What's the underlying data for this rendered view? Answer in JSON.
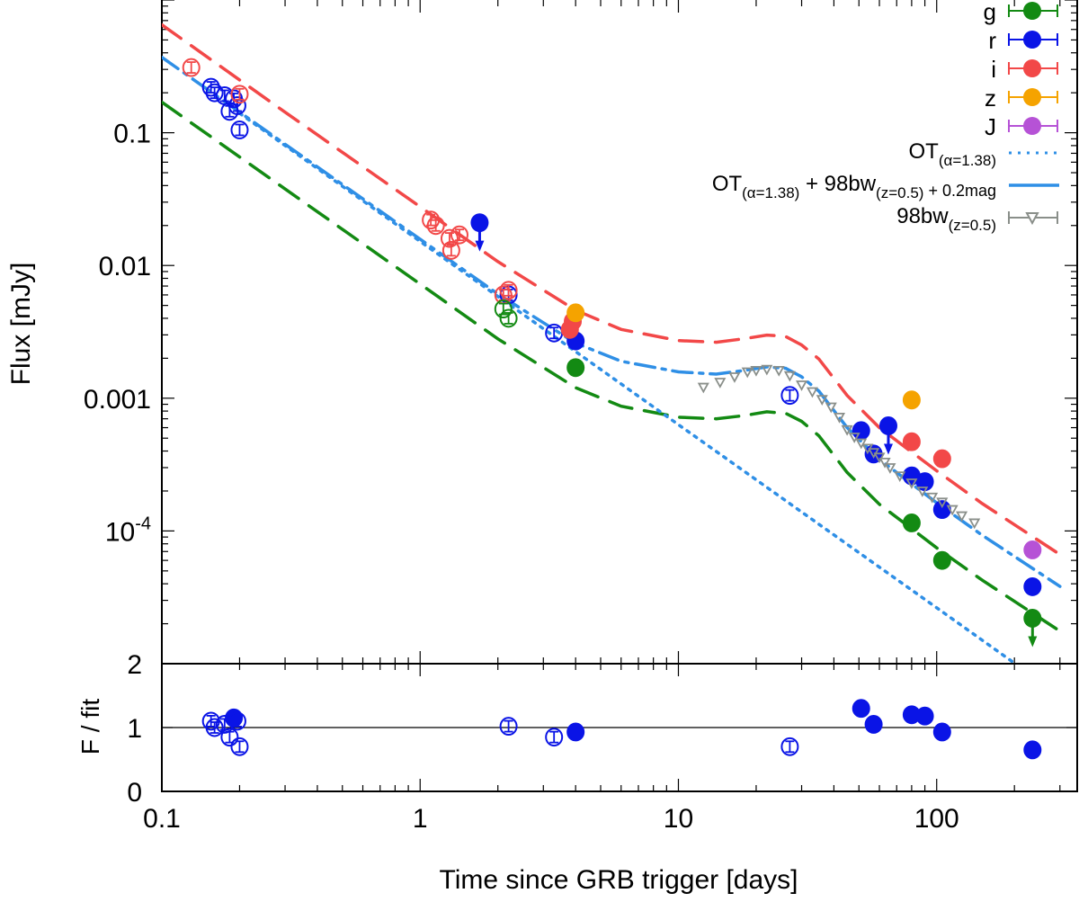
{
  "chart_data": {
    "type": "scatter",
    "xscale": "log",
    "yscale": "log",
    "xlabel": "Time since GRB trigger [days]",
    "ylabel": "Flux [mJy]",
    "ratio_ylabel": "F / fit",
    "xlim": [
      0.1,
      350
    ],
    "ylim": [
      1e-05,
      1
    ],
    "ratio_ylim": [
      0,
      2
    ],
    "x_ticks": [
      {
        "v": 0.1,
        "label": "0.1"
      },
      {
        "v": 1,
        "label": "1"
      },
      {
        "v": 10,
        "label": "10"
      },
      {
        "v": 100,
        "label": "100"
      }
    ],
    "y_ticks": [
      {
        "v": 0.1,
        "label": "0.1"
      },
      {
        "v": 0.01,
        "label": "0.01"
      },
      {
        "v": 0.001,
        "label": "0.001"
      },
      {
        "v": 0.0001,
        "base": "10",
        "exp": "-4"
      }
    ],
    "ratio_ticks": [
      {
        "v": 0,
        "label": "0"
      },
      {
        "v": 1,
        "label": "1"
      },
      {
        "v": 2,
        "label": "2"
      }
    ],
    "colors": {
      "g": "#138a13",
      "r": "#0a14e6",
      "i": "#f24848",
      "z": "#f5a300",
      "J": "#b652d6",
      "ot": "#2f8fe6",
      "bw": "#8a8f8a"
    },
    "legend": {
      "bands": [
        {
          "label": "g",
          "color": "#138a13"
        },
        {
          "label": "r",
          "color": "#0a14e6"
        },
        {
          "label": "i",
          "color": "#f24848"
        },
        {
          "label": "z",
          "color": "#f5a300"
        },
        {
          "label": "J",
          "color": "#b652d6"
        }
      ],
      "models": [
        {
          "main": "OT",
          "sub": "(α=1.38)",
          "style": "dotted",
          "color": "#2f8fe6"
        },
        {
          "main": "OT",
          "sub": "(α=1.38)",
          "mid": " + 98bw",
          "sub2": "(z=0.5)",
          "tail": " + 0.2mag",
          "style": "dashed",
          "color": "#2f8fe6"
        },
        {
          "main": "98bw",
          "sub": "(z=0.5)",
          "style": "triangles",
          "color": "#8a8f8a"
        }
      ],
      "position": "top-right"
    },
    "series": [
      {
        "name": "r",
        "color": "#0a14e6",
        "points": [
          {
            "x": 0.155,
            "y": 0.22,
            "open": true
          },
          {
            "x": 0.16,
            "y": 0.2,
            "open": true
          },
          {
            "x": 0.175,
            "y": 0.19,
            "open": true
          },
          {
            "x": 0.183,
            "y": 0.145,
            "open": true
          },
          {
            "x": 0.19,
            "y": 0.18,
            "open": true
          },
          {
            "x": 0.196,
            "y": 0.16,
            "open": true
          },
          {
            "x": 0.2,
            "y": 0.105,
            "open": true
          },
          {
            "x": 1.7,
            "y": 0.021,
            "open": false,
            "limit": true
          },
          {
            "x": 2.2,
            "y": 0.006,
            "open": true
          },
          {
            "x": 3.3,
            "y": 0.0031,
            "open": true
          },
          {
            "x": 4.0,
            "y": 0.0027,
            "open": false
          },
          {
            "x": 27,
            "y": 0.00105,
            "open": true
          },
          {
            "x": 51,
            "y": 0.00057,
            "open": false
          },
          {
            "x": 57,
            "y": 0.00038,
            "open": false
          },
          {
            "x": 65,
            "y": 0.00062,
            "open": false,
            "limit": true
          },
          {
            "x": 80,
            "y": 0.00026,
            "open": false
          },
          {
            "x": 90,
            "y": 0.000235,
            "open": false
          },
          {
            "x": 105,
            "y": 0.000145,
            "open": false
          },
          {
            "x": 235,
            "y": 3.8e-05,
            "open": false
          }
        ]
      },
      {
        "name": "i",
        "color": "#f24848",
        "points": [
          {
            "x": 0.13,
            "y": 0.31,
            "open": true
          },
          {
            "x": 0.2,
            "y": 0.195,
            "open": true
          },
          {
            "x": 1.1,
            "y": 0.022,
            "open": true
          },
          {
            "x": 1.15,
            "y": 0.02,
            "open": true
          },
          {
            "x": 1.3,
            "y": 0.016,
            "open": true
          },
          {
            "x": 1.32,
            "y": 0.013,
            "open": true
          },
          {
            "x": 1.42,
            "y": 0.017,
            "open": true
          },
          {
            "x": 2.1,
            "y": 0.006,
            "open": true
          },
          {
            "x": 2.2,
            "y": 0.0065,
            "open": true
          },
          {
            "x": 3.8,
            "y": 0.0033,
            "open": false
          },
          {
            "x": 3.9,
            "y": 0.0038,
            "open": false
          },
          {
            "x": 80,
            "y": 0.00047,
            "open": false
          },
          {
            "x": 105,
            "y": 0.00035,
            "open": false
          }
        ]
      },
      {
        "name": "g",
        "color": "#138a13",
        "points": [
          {
            "x": 2.1,
            "y": 0.0047,
            "open": true
          },
          {
            "x": 2.2,
            "y": 0.004,
            "open": true
          },
          {
            "x": 4.0,
            "y": 0.0017,
            "open": false
          },
          {
            "x": 80,
            "y": 0.000115,
            "open": false
          },
          {
            "x": 105,
            "y": 6e-05,
            "open": false
          },
          {
            "x": 235,
            "y": 2.2e-05,
            "open": false,
            "limit": true
          }
        ]
      },
      {
        "name": "z",
        "color": "#f5a300",
        "points": [
          {
            "x": 4.0,
            "y": 0.0044,
            "open": false
          },
          {
            "x": 80,
            "y": 0.00097,
            "open": false
          }
        ]
      },
      {
        "name": "J",
        "color": "#b652d6",
        "points": [
          {
            "x": 235,
            "y": 7.2e-05,
            "open": false
          }
        ]
      },
      {
        "name": "98bw",
        "color": "#8a8f8a",
        "points": [
          {
            "x": 12.5,
            "y": 0.00121
          },
          {
            "x": 14.5,
            "y": 0.00132
          },
          {
            "x": 16.5,
            "y": 0.00145
          },
          {
            "x": 18.5,
            "y": 0.00158
          },
          {
            "x": 20,
            "y": 0.00162
          },
          {
            "x": 22,
            "y": 0.00165
          },
          {
            "x": 24.5,
            "y": 0.00162
          },
          {
            "x": 27,
            "y": 0.00148
          },
          {
            "x": 30,
            "y": 0.00126
          },
          {
            "x": 33,
            "y": 0.00112
          },
          {
            "x": 36,
            "y": 0.00098
          },
          {
            "x": 39,
            "y": 0.00086
          },
          {
            "x": 42,
            "y": 0.00072
          },
          {
            "x": 45,
            "y": 0.00058
          },
          {
            "x": 48,
            "y": 0.00051
          },
          {
            "x": 51,
            "y": 0.00046
          },
          {
            "x": 54,
            "y": 0.00042
          },
          {
            "x": 57,
            "y": 0.00039
          },
          {
            "x": 60,
            "y": 0.00036
          },
          {
            "x": 63,
            "y": 0.00033
          },
          {
            "x": 66,
            "y": 0.0003
          },
          {
            "x": 72,
            "y": 0.00026
          },
          {
            "x": 80,
            "y": 0.00023
          },
          {
            "x": 88,
            "y": 0.0002
          },
          {
            "x": 96,
            "y": 0.00018
          },
          {
            "x": 105,
            "y": 0.000165
          },
          {
            "x": 115,
            "y": 0.000145
          },
          {
            "x": 125,
            "y": 0.00013
          },
          {
            "x": 140,
            "y": 0.000115
          }
        ]
      }
    ],
    "models": [
      {
        "name": "OT+98bw+0.2mag (r)",
        "color": "#2f8fe6",
        "style": "dashdot",
        "x": [
          0.1,
          0.3,
          1,
          2,
          4,
          6,
          10,
          14,
          18,
          22,
          26,
          30,
          35,
          45,
          60,
          80,
          100,
          150,
          300
        ],
        "y": [
          0.37,
          0.082,
          0.0158,
          0.0061,
          0.0026,
          0.0019,
          0.00158,
          0.00152,
          0.00162,
          0.00172,
          0.00168,
          0.00145,
          0.00113,
          0.0006,
          0.000346,
          0.000226,
          0.000163,
          9.29e-05,
          3.82e-05
        ]
      },
      {
        "name": "OT+98bw+0.2mag (i)",
        "color": "#f24848",
        "style": "dashed",
        "x": [
          0.1,
          0.3,
          1,
          2,
          4,
          6,
          10,
          14,
          18,
          22,
          26,
          30,
          35,
          45,
          60,
          80,
          100,
          150,
          300
        ],
        "y": [
          0.65,
          0.143,
          0.0277,
          0.0107,
          0.0046,
          0.0033,
          0.00272,
          0.00264,
          0.00281,
          0.00299,
          0.00292,
          0.00252,
          0.00197,
          0.00105,
          0.0006,
          0.000393,
          0.000284,
          0.000161,
          6.65e-05
        ]
      },
      {
        "name": "OT+98bw+0.2mag (g)",
        "color": "#138a13",
        "style": "dashed",
        "x": [
          0.1,
          0.3,
          1,
          2,
          4,
          6,
          10,
          14,
          18,
          22,
          26,
          30,
          35,
          45,
          60,
          80,
          100,
          150,
          300
        ],
        "y": [
          0.17,
          0.0377,
          0.00725,
          0.0028,
          0.0012,
          0.00087,
          0.00072,
          0.0007,
          0.00074,
          0.00079,
          0.00077,
          0.00067,
          0.00052,
          0.000276,
          0.000159,
          0.000104,
          7.46e-05,
          4.26e-05,
          1.76e-05
        ]
      },
      {
        "name": "OT (alpha=1.38)",
        "color": "#2f8fe6",
        "style": "dotted",
        "x": [
          0.2,
          1,
          3,
          10,
          30,
          100,
          200
        ],
        "y": [
          0.1401,
          0.0152,
          0.00334,
          0.000632,
          0.000139,
          2.64e-05,
          1.01e-05
        ]
      }
    ],
    "ratio_points": [
      {
        "x": 0.155,
        "y": 1.1,
        "color": "#0a14e6",
        "open": true
      },
      {
        "x": 0.16,
        "y": 1.0,
        "color": "#0a14e6",
        "open": true
      },
      {
        "x": 0.175,
        "y": 1.05,
        "color": "#0a14e6",
        "open": true
      },
      {
        "x": 0.183,
        "y": 0.85,
        "color": "#0a14e6",
        "open": true
      },
      {
        "x": 0.19,
        "y": 1.15,
        "color": "#0a14e6",
        "open": false
      },
      {
        "x": 0.196,
        "y": 1.1,
        "color": "#0a14e6",
        "open": true
      },
      {
        "x": 0.2,
        "y": 0.7,
        "color": "#0a14e6",
        "open": true
      },
      {
        "x": 2.2,
        "y": 1.02,
        "color": "#0a14e6",
        "open": true
      },
      {
        "x": 3.3,
        "y": 0.85,
        "color": "#0a14e6",
        "open": true
      },
      {
        "x": 4.0,
        "y": 0.93,
        "color": "#0a14e6",
        "open": false
      },
      {
        "x": 27,
        "y": 0.7,
        "color": "#0a14e6",
        "open": true
      },
      {
        "x": 51,
        "y": 1.3,
        "color": "#0a14e6",
        "open": false
      },
      {
        "x": 57,
        "y": 1.05,
        "color": "#0a14e6",
        "open": false
      },
      {
        "x": 80,
        "y": 1.2,
        "color": "#0a14e6",
        "open": false
      },
      {
        "x": 90,
        "y": 1.18,
        "color": "#0a14e6",
        "open": false
      },
      {
        "x": 105,
        "y": 0.93,
        "color": "#0a14e6",
        "open": false
      },
      {
        "x": 235,
        "y": 0.65,
        "color": "#0a14e6",
        "open": false
      }
    ]
  }
}
